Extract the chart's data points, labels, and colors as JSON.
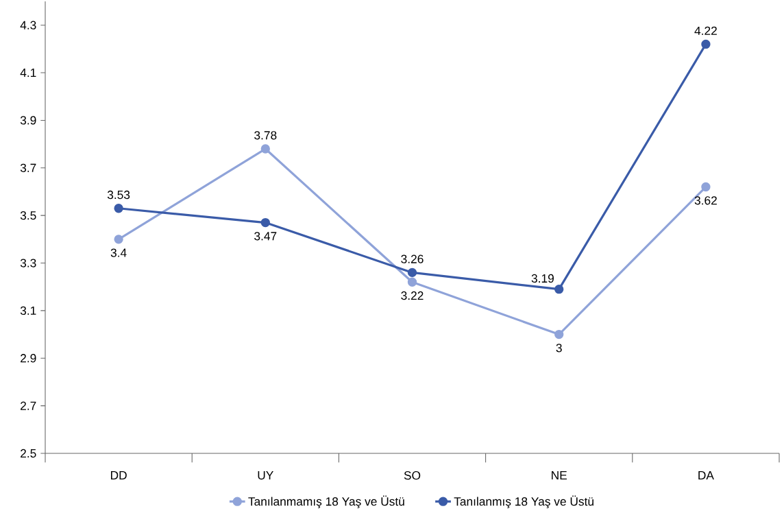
{
  "chart_data": {
    "type": "line",
    "categories": [
      "DD",
      "UY",
      "SO",
      "NE",
      "DA"
    ],
    "series": [
      {
        "name": "Tanılanmamış 18 Yaş ve Üstü",
        "color": "#8fa3d9",
        "values": [
          3.4,
          3.78,
          3.22,
          3,
          3.62
        ]
      },
      {
        "name": "Tanılanmış 18 Yaş ve Üstü",
        "color": "#3a5ba8",
        "values": [
          3.53,
          3.47,
          3.26,
          3.19,
          4.22
        ]
      }
    ],
    "ylim": [
      2.5,
      4.4
    ],
    "yticks": [
      2.5,
      2.7,
      2.9,
      3.1,
      3.3,
      3.5,
      3.7,
      3.9,
      4.1,
      4.3
    ],
    "data_labels": true,
    "legend": "bottom",
    "grid": false,
    "marker": "circle",
    "line_style": "solid"
  }
}
